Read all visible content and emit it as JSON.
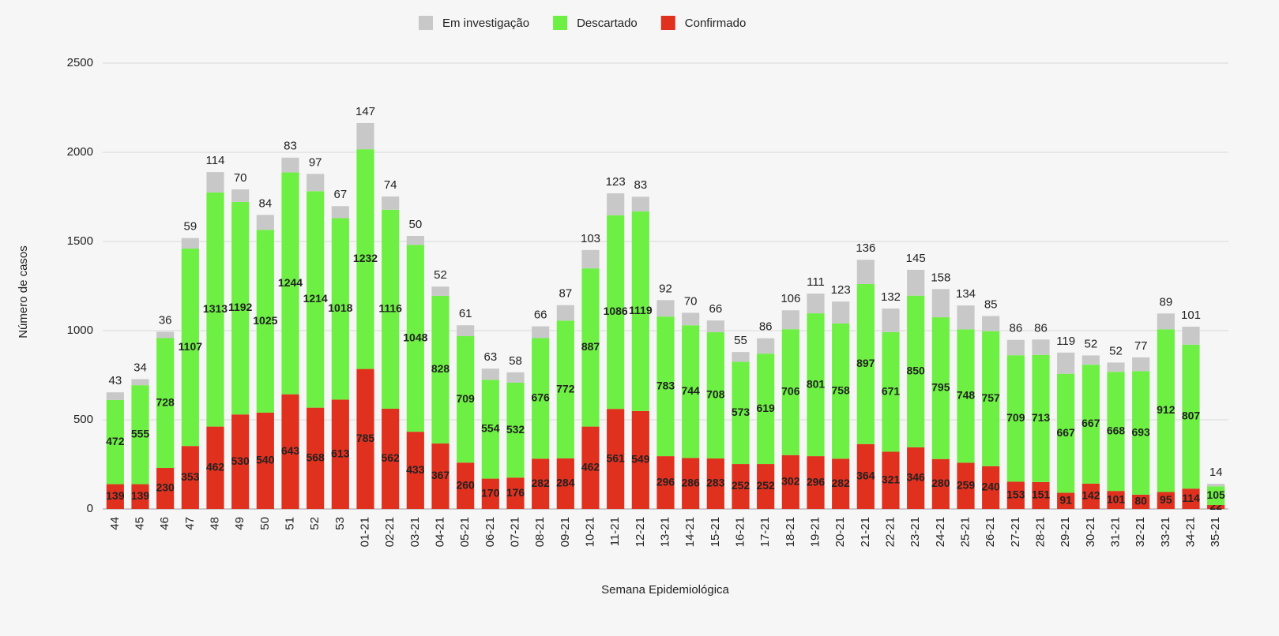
{
  "chart_data": {
    "type": "bar",
    "stacked": true,
    "x_label": "Semana Epidemiológica",
    "y_label": "Número de casos",
    "categories": [
      "44",
      "45",
      "46",
      "47",
      "48",
      "49",
      "50",
      "51",
      "52",
      "53",
      "01-21",
      "02-21",
      "03-21",
      "04-21",
      "05-21",
      "06-21",
      "07-21",
      "08-21",
      "09-21",
      "10-21",
      "11-21",
      "12-21",
      "13-21",
      "14-21",
      "15-21",
      "16-21",
      "17-21",
      "18-21",
      "19-21",
      "20-21",
      "21-21",
      "22-21",
      "23-21",
      "24-21",
      "25-21",
      "26-21",
      "27-21",
      "28-21",
      "29-21",
      "30-21",
      "31-21",
      "32-21",
      "33-21",
      "34-21",
      "35-21"
    ],
    "series": [
      {
        "name": "Em investigação",
        "color": "#c8c8c8",
        "values": [
          43,
          34,
          36,
          59,
          114,
          70,
          84,
          83,
          97,
          67,
          147,
          74,
          50,
          52,
          61,
          63,
          58,
          66,
          87,
          103,
          123,
          83,
          92,
          70,
          66,
          55,
          86,
          106,
          111,
          123,
          136,
          132,
          145,
          158,
          134,
          85,
          86,
          86,
          119,
          52,
          52,
          77,
          89,
          101,
          14
        ]
      },
      {
        "name": "Descartado",
        "color": "#6df043",
        "values": [
          472,
          555,
          728,
          1107,
          1313,
          1192,
          1025,
          1244,
          1214,
          1018,
          1232,
          1116,
          1048,
          828,
          709,
          554,
          532,
          676,
          772,
          887,
          1086,
          1119,
          783,
          744,
          708,
          573,
          619,
          706,
          801,
          758,
          897,
          671,
          850,
          795,
          748,
          757,
          709,
          713,
          667,
          667,
          668,
          693,
          912,
          807,
          105
        ]
      },
      {
        "name": "Confirmado",
        "color": "#e0301e",
        "values": [
          139,
          139,
          230,
          353,
          462,
          530,
          540,
          643,
          568,
          613,
          785,
          562,
          433,
          367,
          260,
          170,
          176,
          282,
          284,
          462,
          561,
          549,
          296,
          286,
          283,
          252,
          252,
          302,
          296,
          282,
          364,
          321,
          346,
          280,
          259,
          240,
          153,
          151,
          91,
          142,
          101,
          80,
          95,
          114,
          22
        ]
      }
    ],
    "ylim": [
      0,
      2500
    ],
    "yticks": [
      0,
      500,
      1000,
      1500,
      2000,
      2500
    ],
    "grid": true,
    "legend": "top"
  }
}
